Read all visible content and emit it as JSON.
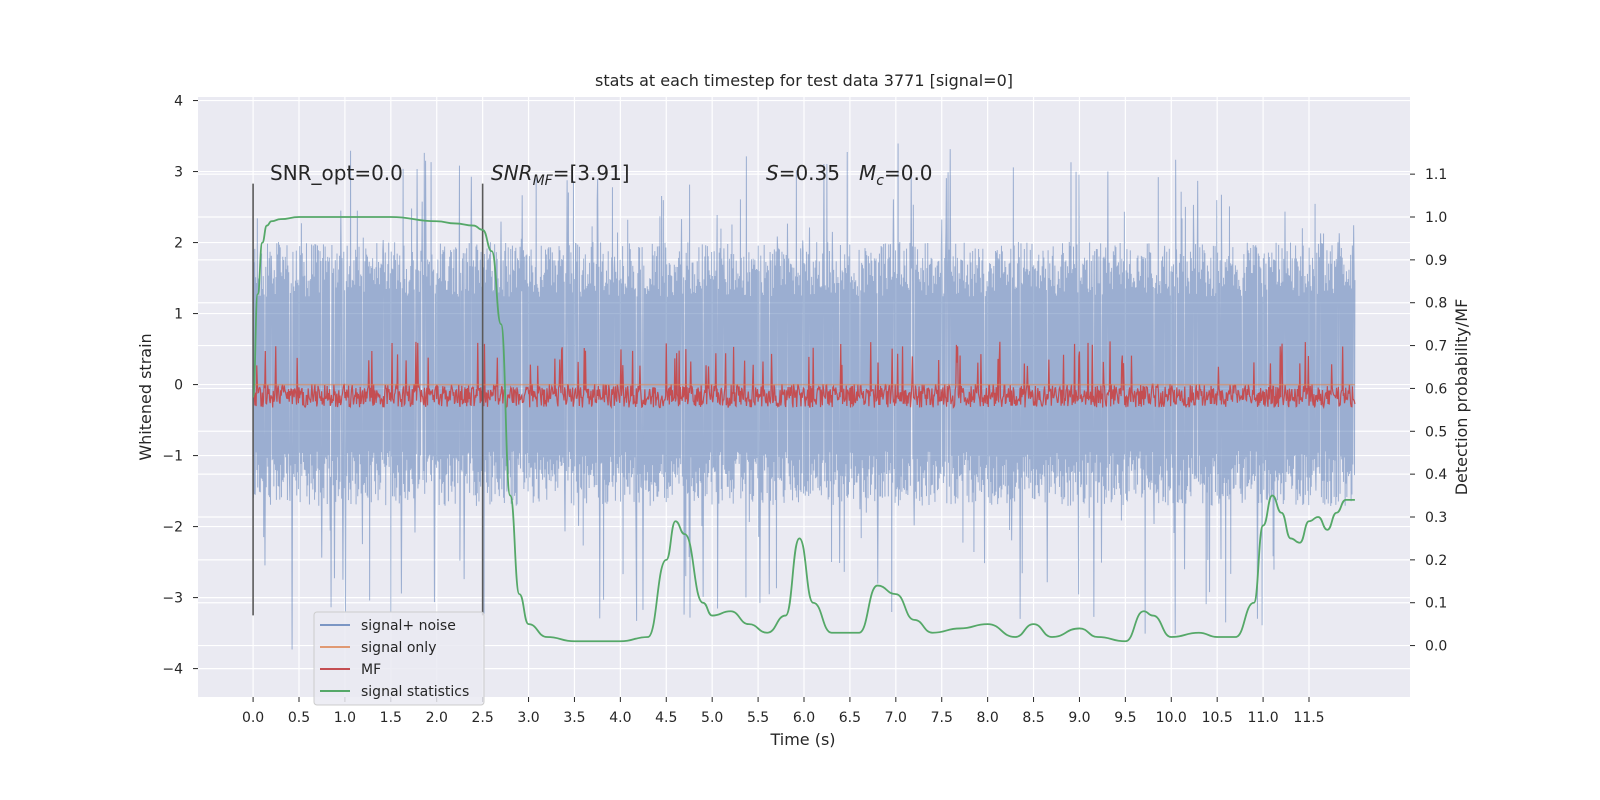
{
  "chart_data": {
    "type": "line",
    "title": "stats at each timestep for test data 3771 [signal=0]",
    "xlabel": "Time (s)",
    "ylabel": "Whitened strain",
    "ylabel_right": "Detection probability/MF",
    "xlim": [
      -0.6,
      12.6
    ],
    "ylim": [
      -4.4,
      4.05
    ],
    "ylim_right": [
      -0.12,
      1.28
    ],
    "x_ticks": [
      0.0,
      0.5,
      1.0,
      1.5,
      2.0,
      2.5,
      3.0,
      3.5,
      4.0,
      4.5,
      5.0,
      5.5,
      6.0,
      6.5,
      7.0,
      7.5,
      8.0,
      8.5,
      9.0,
      9.5,
      10.0,
      10.5,
      11.0,
      11.5
    ],
    "x_tick_labels": [
      "0.0",
      "0.5",
      "1.0",
      "1.5",
      "2.0",
      "2.5",
      "3.0",
      "3.5",
      "4.0",
      "4.5",
      "5.0",
      "5.5",
      "6.0",
      "6.5",
      "7.0",
      "7.5",
      "8.0",
      "8.5",
      "9.0",
      "9.5",
      "10.0",
      "10.5",
      "11.0",
      "11.5"
    ],
    "y_ticks": [
      -4,
      -3,
      -2,
      -1,
      0,
      1,
      2,
      3,
      4
    ],
    "y_tick_labels": [
      "−4",
      "−3",
      "−2",
      "−1",
      "0",
      "1",
      "2",
      "3",
      "4"
    ],
    "y_right_ticks": [
      0.0,
      0.1,
      0.2,
      0.3,
      0.4,
      0.5,
      0.6,
      0.7,
      0.8,
      0.9,
      1.0,
      1.1
    ],
    "y_right_tick_labels": [
      "0.0",
      "0.1",
      "0.2",
      "0.3",
      "0.4",
      "0.5",
      "0.6",
      "0.7",
      "0.8",
      "0.9",
      "1.0",
      "1.1"
    ],
    "grid": true,
    "legend_position": "lower-left",
    "background_color": "#eaeaf2",
    "series": [
      {
        "name": "signal+ noise",
        "axis": "left",
        "color": "#4c72b0",
        "opacity": 0.5,
        "x_range": [
          0.0,
          12.0
        ],
        "envelope_max": [
          [
            0.0,
            2.4
          ],
          [
            0.5,
            3.0
          ],
          [
            0.8,
            3.65
          ],
          [
            1.5,
            3.1
          ],
          [
            2.3,
            3.65
          ],
          [
            2.6,
            2.9
          ],
          [
            3.5,
            3.1
          ],
          [
            4.3,
            3.2
          ],
          [
            5.0,
            3.4
          ],
          [
            6.0,
            3.3
          ],
          [
            6.4,
            3.4
          ],
          [
            7.3,
            3.6
          ],
          [
            8.2,
            3.35
          ],
          [
            9.5,
            3.4
          ],
          [
            10.2,
            3.2
          ],
          [
            11.0,
            3.5
          ],
          [
            11.5,
            3.2
          ],
          [
            12.0,
            2.6
          ]
        ],
        "envelope_min": [
          [
            0.0,
            -2.3
          ],
          [
            0.3,
            -4.1
          ],
          [
            1.0,
            -3.3
          ],
          [
            2.0,
            -3.1
          ],
          [
            2.6,
            -3.7
          ],
          [
            3.8,
            -3.3
          ],
          [
            4.4,
            -3.65
          ],
          [
            5.3,
            -3.4
          ],
          [
            6.7,
            -3.6
          ],
          [
            7.3,
            -3.3
          ],
          [
            8.3,
            -3.55
          ],
          [
            9.0,
            -3.4
          ],
          [
            9.6,
            -3.5
          ],
          [
            10.5,
            -3.85
          ],
          [
            11.3,
            -3.3
          ],
          [
            12.0,
            -1.7
          ]
        ],
        "typical_range": [
          -1.4,
          1.7
        ]
      },
      {
        "name": "signal only",
        "axis": "left",
        "color": "#dd8452",
        "opacity": 0.6,
        "x": [
          0.0,
          12.0
        ],
        "y": [
          0.0,
          0.0
        ]
      },
      {
        "name": "MF",
        "axis": "right",
        "color": "#c44e52",
        "x_range": [
          0.0,
          12.0
        ],
        "baseline": 0.58,
        "typical_range": [
          0.55,
          0.65
        ],
        "envelope_max": [
          [
            0.0,
            0.7
          ],
          [
            1.0,
            0.72
          ],
          [
            3.0,
            0.71
          ],
          [
            5.0,
            0.71
          ],
          [
            7.0,
            0.72
          ],
          [
            9.0,
            0.71
          ],
          [
            11.0,
            0.72
          ],
          [
            12.0,
            0.7
          ]
        ],
        "envelope_min": [
          [
            0.0,
            0.53
          ],
          [
            12.0,
            0.53
          ]
        ]
      },
      {
        "name": "signal statistics",
        "axis": "right",
        "color": "#55a868",
        "x": [
          0.0,
          0.05,
          0.1,
          0.15,
          0.2,
          0.3,
          0.5,
          1.0,
          1.5,
          2.0,
          2.2,
          2.4,
          2.5,
          2.6,
          2.7,
          2.8,
          2.9,
          3.0,
          3.2,
          3.5,
          4.0,
          4.3,
          4.5,
          4.6,
          4.7,
          4.9,
          5.0,
          5.2,
          5.4,
          5.6,
          5.8,
          5.95,
          6.1,
          6.3,
          6.6,
          6.8,
          7.0,
          7.2,
          7.4,
          7.7,
          8.0,
          8.3,
          8.5,
          8.7,
          9.0,
          9.2,
          9.5,
          9.7,
          9.8,
          10.0,
          10.3,
          10.5,
          10.7,
          10.9,
          11.0,
          11.1,
          11.2,
          11.3,
          11.4,
          11.5,
          11.6,
          11.7,
          11.8,
          11.9,
          12.0
        ],
        "y": [
          0.58,
          0.82,
          0.94,
          0.98,
          0.99,
          0.995,
          1.0,
          1.0,
          1.0,
          0.99,
          0.985,
          0.98,
          0.97,
          0.92,
          0.75,
          0.35,
          0.12,
          0.05,
          0.02,
          0.01,
          0.01,
          0.02,
          0.2,
          0.29,
          0.26,
          0.1,
          0.07,
          0.08,
          0.05,
          0.03,
          0.07,
          0.25,
          0.1,
          0.03,
          0.03,
          0.14,
          0.12,
          0.06,
          0.03,
          0.04,
          0.05,
          0.02,
          0.05,
          0.02,
          0.04,
          0.02,
          0.01,
          0.08,
          0.07,
          0.02,
          0.03,
          0.02,
          0.02,
          0.1,
          0.28,
          0.35,
          0.31,
          0.25,
          0.24,
          0.29,
          0.3,
          0.27,
          0.31,
          0.34,
          0.34
        ]
      }
    ],
    "annotations": {
      "snr_opt": "SNR_opt=0.0",
      "snr_mf_base": "SNR",
      "snr_mf_sub": "MF",
      "snr_mf_value": "=[3.91]",
      "s_label": "S",
      "s_value": "=0.35",
      "mc_base": "M",
      "mc_sub": "c",
      "mc_value": "=0.0"
    },
    "vertical_markers": [
      0.0,
      2.5
    ]
  }
}
